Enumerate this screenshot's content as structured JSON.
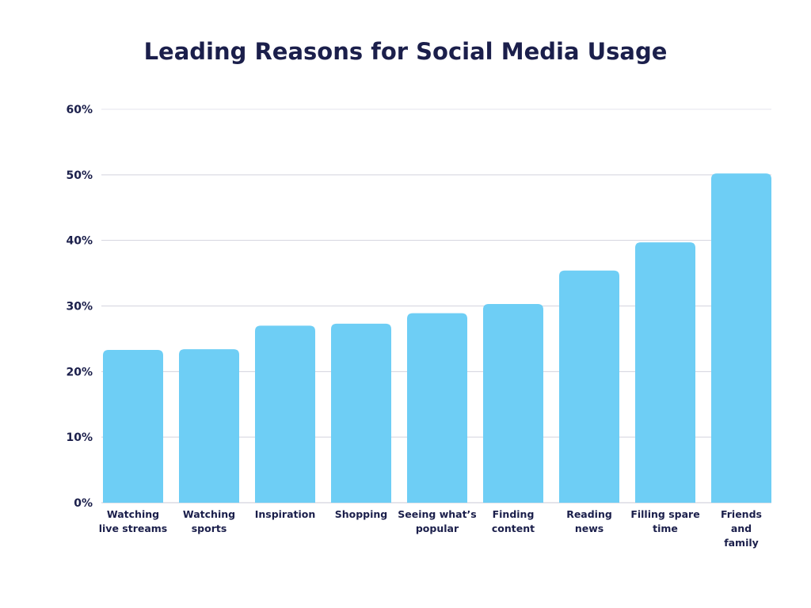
{
  "chart_data": {
    "type": "bar",
    "title": "Leading Reasons for Social Media Usage",
    "xlabel": "",
    "ylabel": "",
    "ylim": [
      0,
      60
    ],
    "yticks": [
      "0%",
      "10%",
      "20%",
      "30%",
      "40%",
      "50%",
      "60%"
    ],
    "grid": true,
    "bar_color": "#6ecef5",
    "text_color": "#1b1f4b",
    "grid_color": "#d3d3de",
    "categories": [
      [
        "Watching",
        "live streams"
      ],
      [
        "Watching",
        "sports"
      ],
      [
        "Inspiration"
      ],
      [
        "Shopping"
      ],
      [
        "Seeing what’s",
        "popular"
      ],
      [
        "Finding",
        "content"
      ],
      [
        "Reading",
        "news"
      ],
      [
        "Filling spare",
        "time"
      ],
      [
        "Friends",
        "and",
        "family"
      ]
    ],
    "values": [
      23.3,
      23.4,
      27.0,
      27.3,
      28.9,
      30.3,
      35.4,
      39.7,
      50.2
    ]
  }
}
